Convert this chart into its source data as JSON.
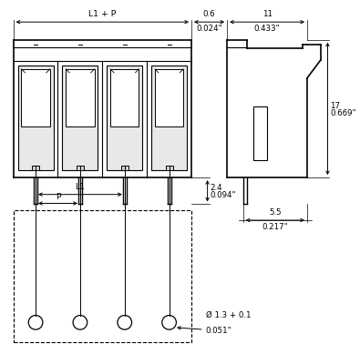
{
  "bg_color": "#ffffff",
  "line_color": "#000000",
  "dim_color": "#000000",
  "dimensions": {
    "L1_P_label": "L1 + P",
    "d06_label": "0.6",
    "d06_inch": "0.024\"",
    "d11_label": "11",
    "d11_inch": "0.433\"",
    "d24_label": "2.4",
    "d24_inch": "0.094\"",
    "d17_label": "17",
    "d17_inch": "0.669\"",
    "d55_label": "5.5",
    "d55_inch": "0.217\"",
    "L1_label": "L1",
    "P_label": "P",
    "hole_label": "Ø 1.3 + 0.1",
    "hole_inch": "0.051\""
  }
}
